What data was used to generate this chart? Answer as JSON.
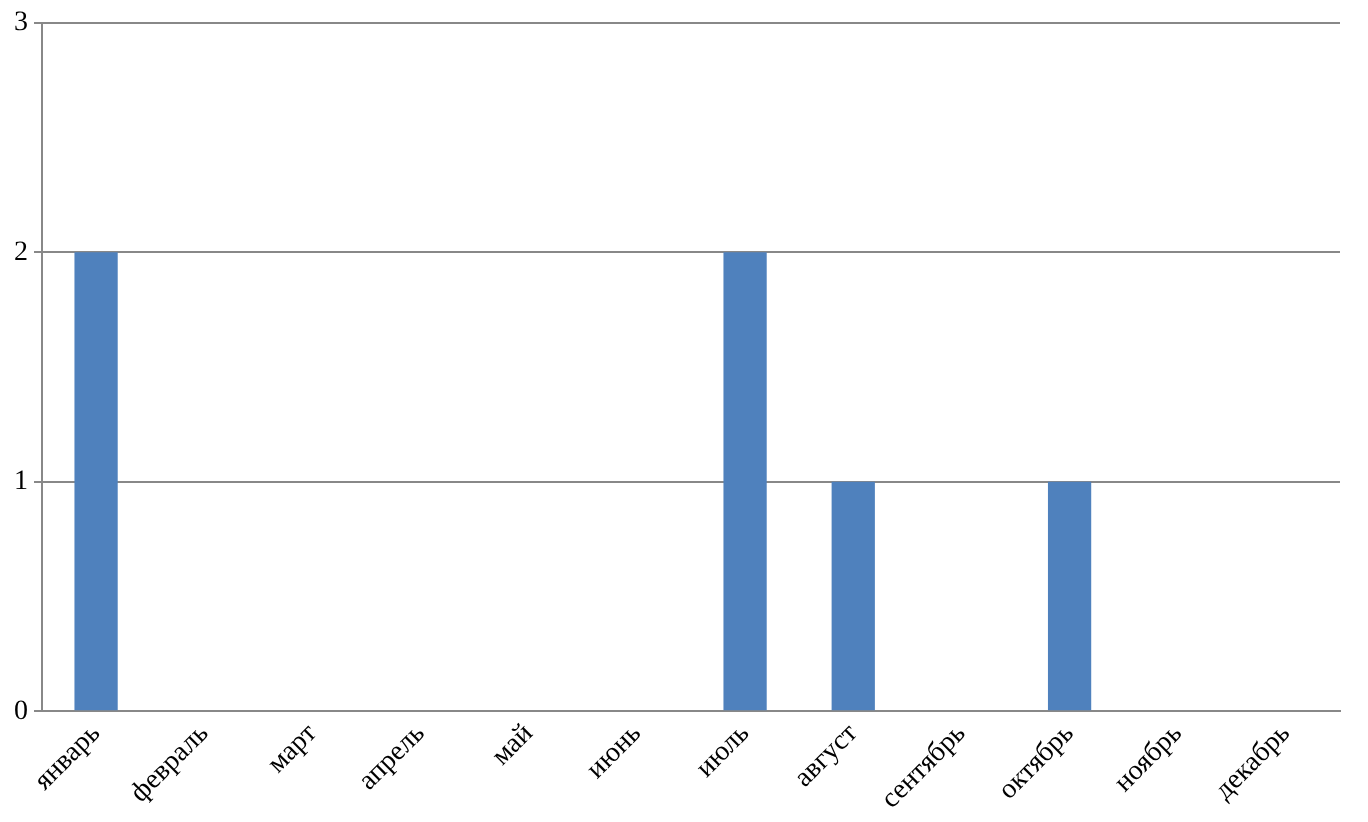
{
  "chart_data": {
    "type": "bar",
    "categories": [
      "январь",
      "февраль",
      "март",
      "апрель",
      "май",
      "июнь",
      "июль",
      "август",
      "сентябрь",
      "октябрь",
      "ноябрь",
      "декабрь"
    ],
    "values": [
      2,
      0,
      0,
      0,
      0,
      0,
      2,
      1,
      0,
      1,
      0,
      0
    ],
    "color": "#4f81bd",
    "ylim": [
      0,
      3
    ],
    "yticks": [
      0,
      1,
      2,
      3
    ],
    "grid": "y",
    "legend": false
  }
}
